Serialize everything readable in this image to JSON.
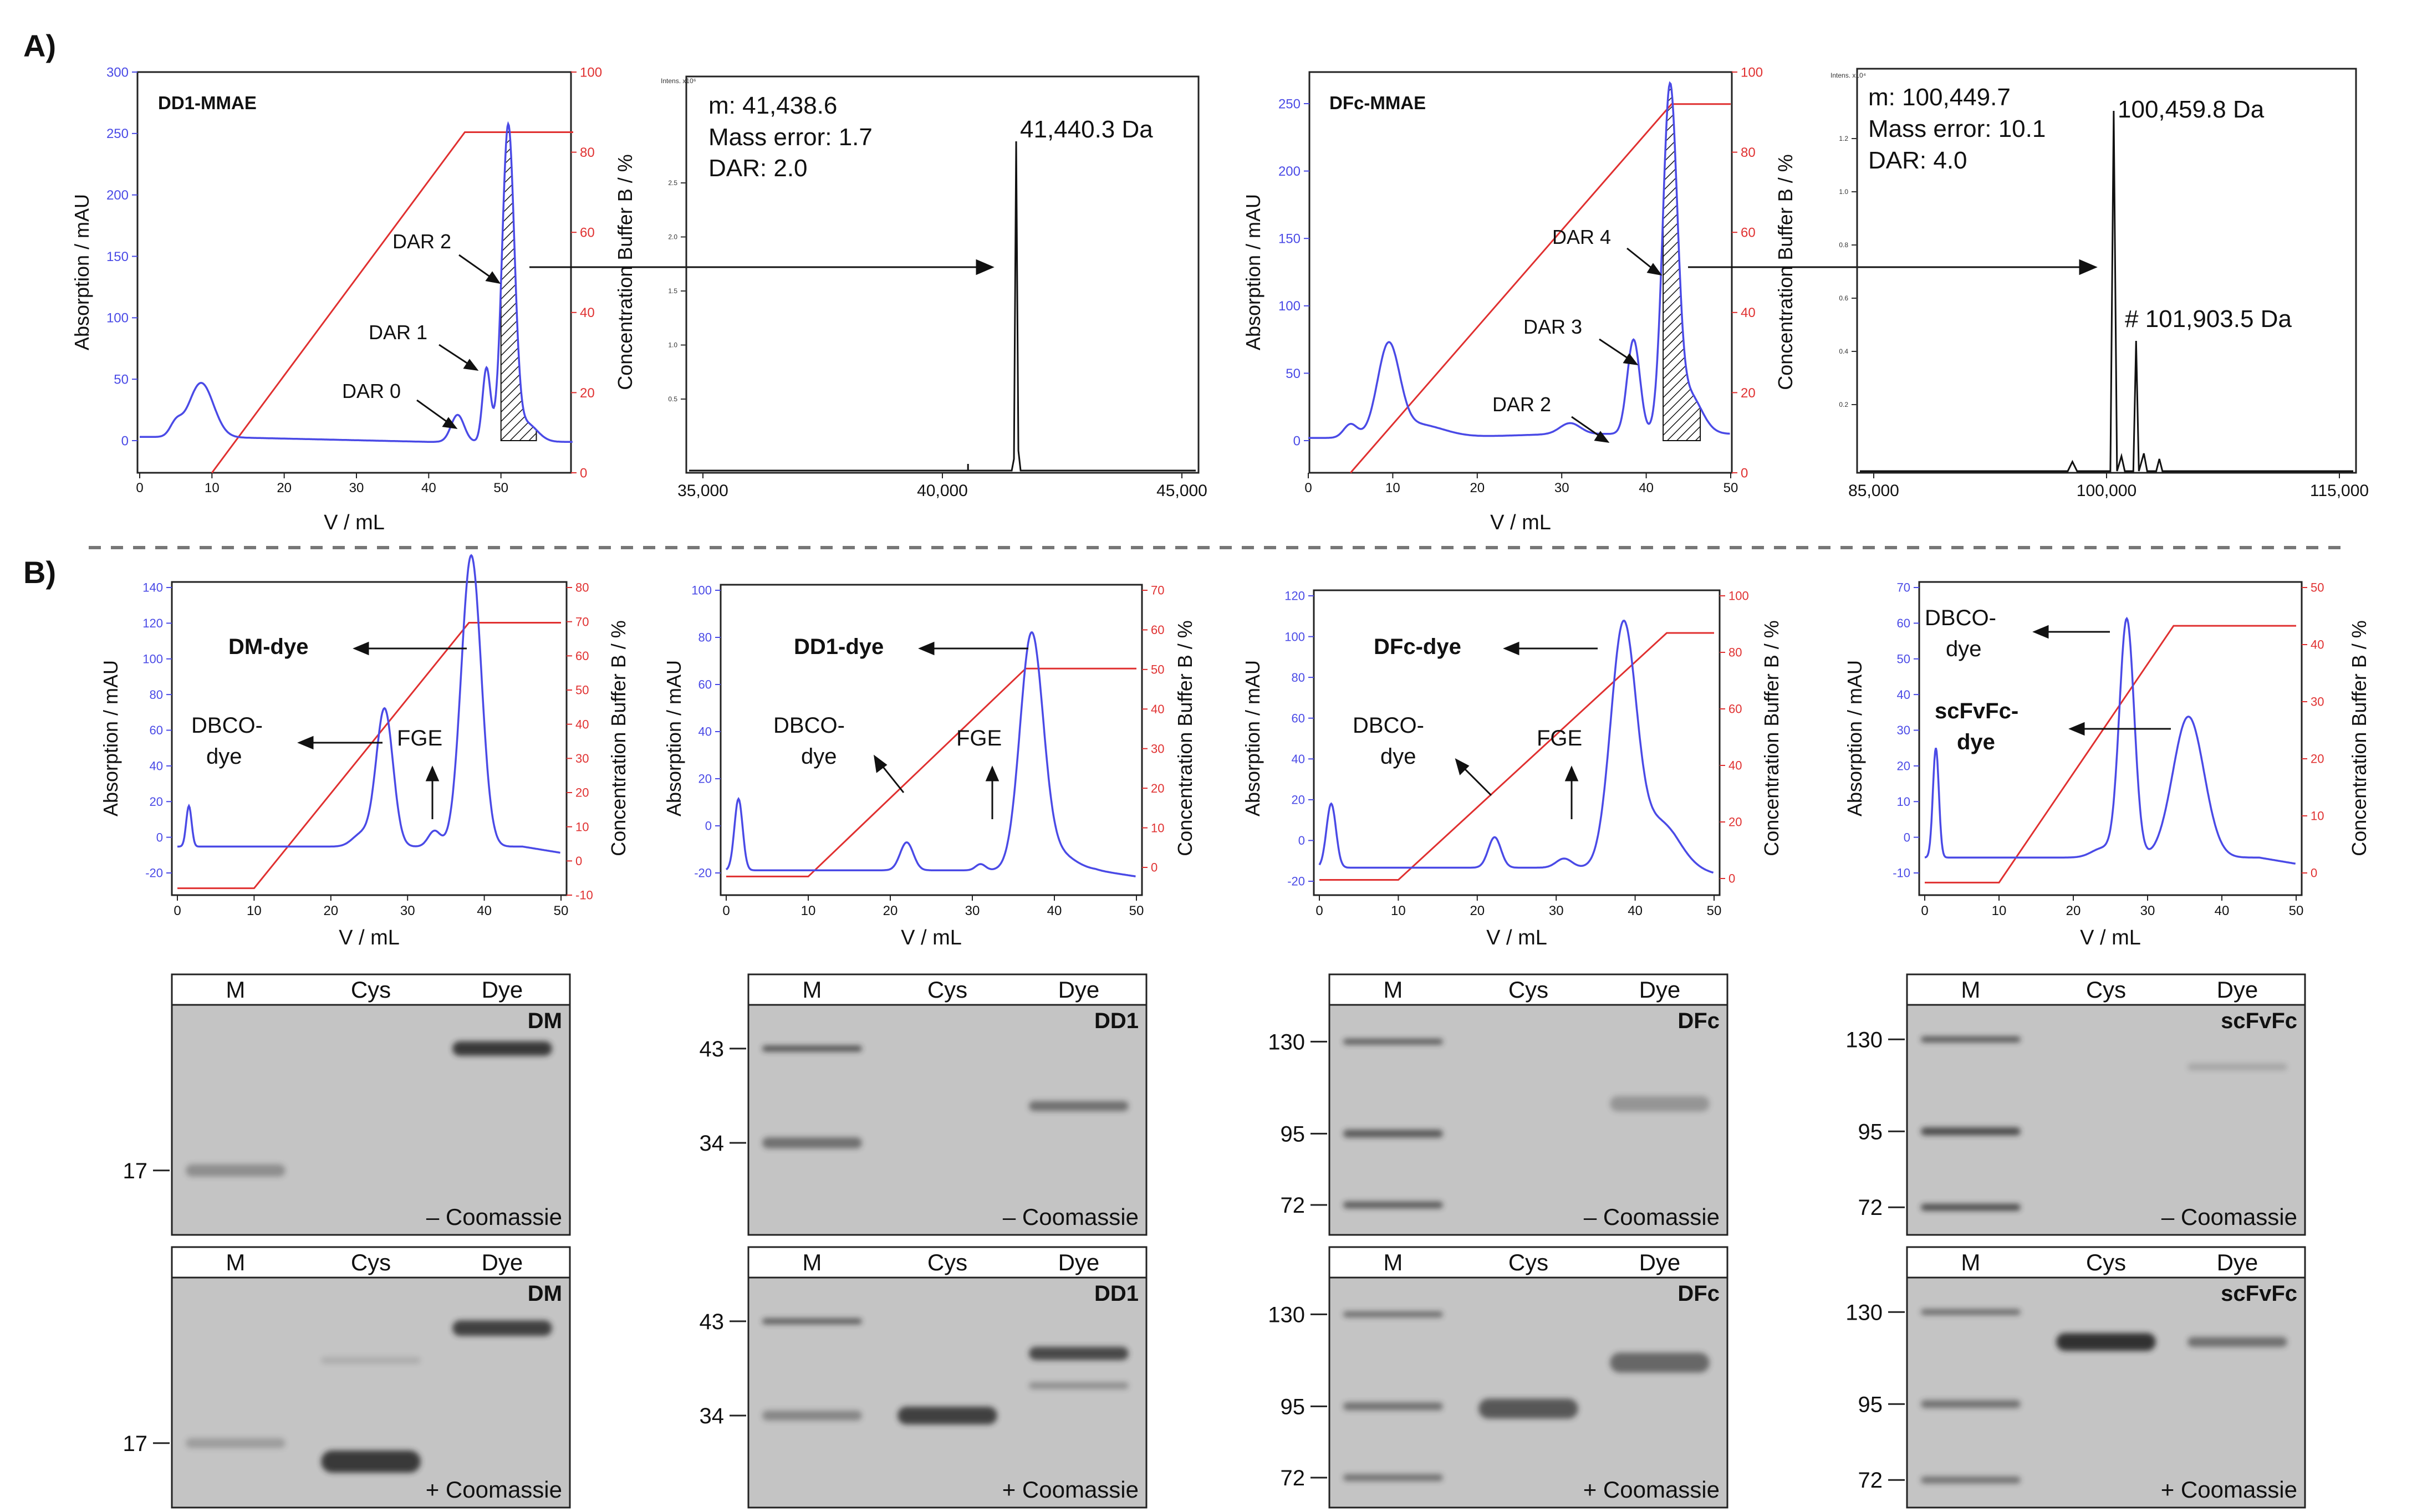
{
  "panels": {
    "A": "A)",
    "B": "B)"
  },
  "colors": {
    "absorbance": "#4a4ae6",
    "buffer": "#e03030",
    "axis": "#222222",
    "gel_bg": "#c4c4c4",
    "gel_band": "#2a2a2a"
  },
  "panelA": {
    "dd1_chrom": {
      "title": "DD1-MMAE",
      "xlabel": "V / mL",
      "ylabel_left": "Absorption / mAU",
      "ylabel_right": "Concentration Buffer B / %",
      "xticks": [
        "0",
        "10",
        "20",
        "30",
        "40",
        "50"
      ],
      "yticks_left": [
        "0",
        "50",
        "100",
        "150",
        "200",
        "250",
        "300"
      ],
      "yticks_right": [
        "0",
        "20",
        "40",
        "60",
        "80",
        "100"
      ],
      "ylim_left_top": "300",
      "annotations": [
        "DAR 2",
        "DAR 1",
        "DAR 0"
      ]
    },
    "dd1_ms": {
      "info": [
        "m: 41,438.6",
        "Mass error: 1.7",
        "DAR: 2.0"
      ],
      "peak_label": "41,440.3 Da",
      "xticks": [
        "35,000",
        "40,000",
        "45,000"
      ],
      "ytitle": "Intens. x10⁶",
      "yticks": [
        "0.5",
        "1.0",
        "1.5",
        "2.0",
        "2.5"
      ]
    },
    "dfc_chrom": {
      "title": "DFc-MMAE",
      "xlabel": "V / mL",
      "ylabel_left": "Absorption / mAU",
      "ylabel_right": "Concentration Buffer B / %",
      "xticks": [
        "0",
        "10",
        "20",
        "30",
        "40",
        "50"
      ],
      "yticks_left": [
        "0",
        "50",
        "100",
        "150",
        "200",
        "250"
      ],
      "yticks_right": [
        "0",
        "20",
        "40",
        "60",
        "80",
        "100"
      ],
      "annotations": [
        "DAR 4",
        "DAR 3",
        "DAR 2"
      ]
    },
    "dfc_ms": {
      "info": [
        "m: 100,449.7",
        "Mass error: 10.1",
        "DAR: 4.0"
      ],
      "peak_label": "100,459.8 Da",
      "peak2_label": "# 101,903.5 Da",
      "xticks": [
        "85,000",
        "100,000",
        "115,000"
      ],
      "ytitle": "Intens. x10⁴",
      "yticks": [
        "0.2",
        "0.4",
        "0.6",
        "0.8",
        "1.0",
        "1.2"
      ]
    }
  },
  "panelB": {
    "chroms": [
      {
        "xlabel": "V / mL",
        "ylabel_left": "Absorption / mAU",
        "ylabel_right": "Concentration Buffer B / %",
        "xticks": [
          "0",
          "10",
          "20",
          "30",
          "40",
          "50"
        ],
        "yticks_left": [
          "-20",
          "0",
          "20",
          "40",
          "60",
          "80",
          "100",
          "120",
          "140"
        ],
        "yticks_right": [
          "-10",
          "0",
          "10",
          "20",
          "30",
          "40",
          "50",
          "60",
          "70",
          "80"
        ],
        "labels": [
          "DM-dye",
          "DBCO-",
          "dye",
          "FGE"
        ]
      },
      {
        "xlabel": "V / mL",
        "ylabel_left": "Absorption / mAU",
        "ylabel_right": "Concentration Buffer B / %",
        "xticks": [
          "0",
          "10",
          "20",
          "30",
          "40",
          "50"
        ],
        "yticks_left": [
          "-20",
          "0",
          "20",
          "40",
          "60",
          "80",
          "100"
        ],
        "yticks_right": [
          "0",
          "10",
          "20",
          "30",
          "40",
          "50",
          "60",
          "70"
        ],
        "labels": [
          "DD1-dye",
          "DBCO-",
          "dye",
          "FGE"
        ]
      },
      {
        "xlabel": "V / mL",
        "ylabel_left": "Absorption / mAU",
        "ylabel_right": "Concentration Buffer B / %",
        "xticks": [
          "0",
          "10",
          "20",
          "30",
          "40",
          "50"
        ],
        "yticks_left": [
          "-20",
          "0",
          "20",
          "40",
          "60",
          "80",
          "100",
          "120"
        ],
        "yticks_right": [
          "0",
          "20",
          "40",
          "60",
          "80",
          "100"
        ],
        "labels": [
          "DFc-dye",
          "DBCO-",
          "dye",
          "FGE"
        ]
      },
      {
        "xlabel": "V / mL",
        "ylabel_left": "Absorption / mAU",
        "ylabel_right": "Concentration Buffer B / %",
        "xticks": [
          "0",
          "10",
          "20",
          "30",
          "40",
          "50"
        ],
        "yticks_left": [
          "-10",
          "0",
          "10",
          "20",
          "30",
          "40",
          "50",
          "60",
          "70"
        ],
        "yticks_right": [
          "0",
          "10",
          "20",
          "30",
          "40",
          "50"
        ],
        "labels": [
          "DBCO-",
          "dye",
          "scFvFc-",
          "dye"
        ]
      }
    ],
    "gels": [
      {
        "lanes": [
          "M",
          "Cys",
          "Dye"
        ],
        "name": "DM",
        "markers": [
          "17"
        ],
        "stain_minus": "– Coomassie",
        "stain_plus": "+ Coomassie"
      },
      {
        "lanes": [
          "M",
          "Cys",
          "Dye"
        ],
        "name": "DD1",
        "markers": [
          "43",
          "34"
        ],
        "stain_minus": "– Coomassie",
        "stain_plus": "+ Coomassie"
      },
      {
        "lanes": [
          "M",
          "Cys",
          "Dye"
        ],
        "name": "DFc",
        "markers": [
          "130",
          "95",
          "72"
        ],
        "stain_minus": "– Coomassie",
        "stain_plus": "+ Coomassie"
      },
      {
        "lanes": [
          "M",
          "Cys",
          "Dye"
        ],
        "name": "scFvFc",
        "markers": [
          "130",
          "95",
          "72"
        ],
        "stain_minus": "– Coomassie",
        "stain_plus": "+ Coomassie"
      }
    ]
  }
}
